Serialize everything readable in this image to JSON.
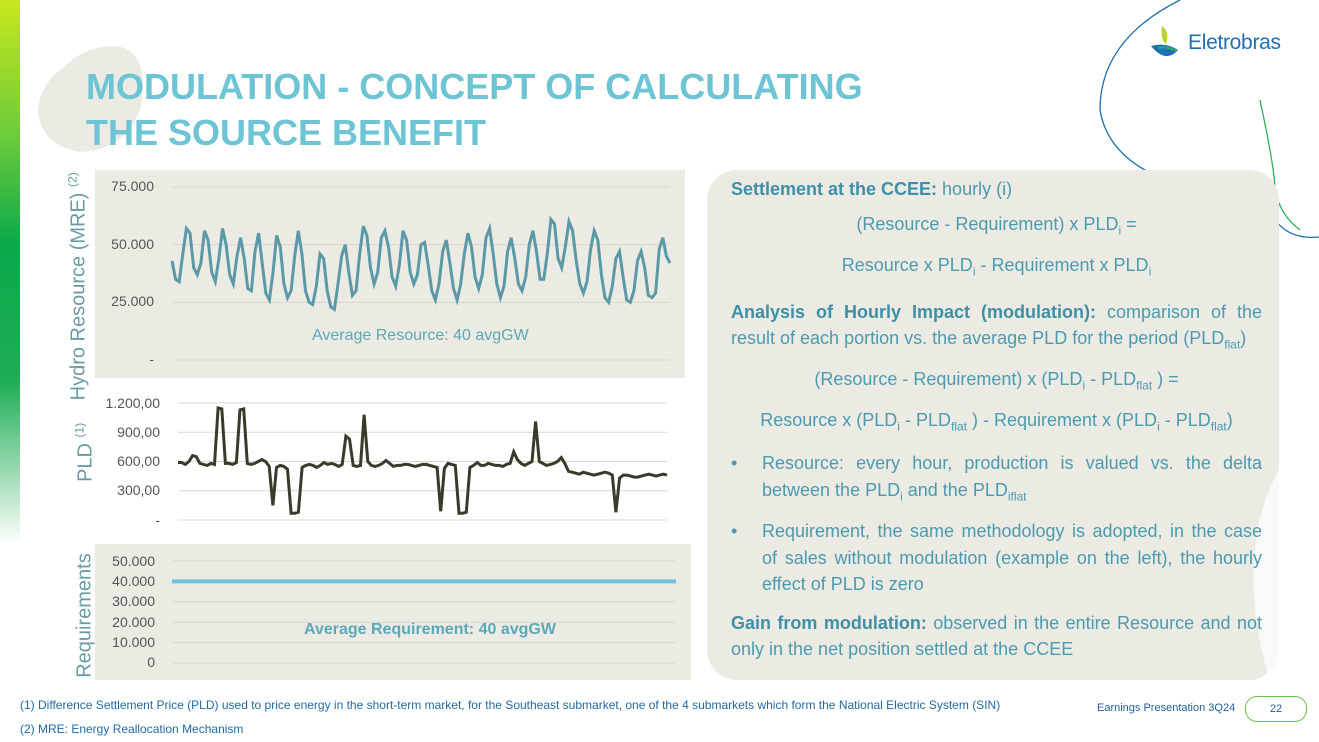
{
  "slide": {
    "title_line1": "MODULATION - CONCEPT OF CALCULATING",
    "title_line2": "THE SOURCE BENEFIT",
    "logo_text": "Eletrobras",
    "footer_label": "Earnings Presentation 3Q24",
    "page_number": "22"
  },
  "axis_labels": {
    "hydro": "Hydro Resource (MRE)",
    "hydro_ref": "(2)",
    "pld": "PLD",
    "pld_ref": "(1)",
    "requirements": "Requirements"
  },
  "chart_data": [
    {
      "type": "line",
      "ylabel": "Hydro Resource (MRE) (2)",
      "y_tick_labels": [
        "75.000",
        "50.000",
        "25.000",
        "-"
      ],
      "y_ticks": [
        75000,
        50000,
        25000,
        0
      ],
      "ylim": [
        0,
        75000
      ],
      "annotation": "Average Resource: 40 avgGW",
      "color": "#5b98a8",
      "values": [
        43000,
        35000,
        34000,
        46000,
        57000,
        55000,
        40000,
        37000,
        42000,
        56000,
        52000,
        38000,
        34000,
        44000,
        57000,
        50000,
        37000,
        33000,
        45000,
        53000,
        44000,
        31000,
        30000,
        47000,
        55000,
        42000,
        29000,
        26000,
        38000,
        54000,
        49000,
        33000,
        27000,
        30000,
        45000,
        56000,
        46000,
        30000,
        25000,
        24000,
        32000,
        46000,
        44000,
        30000,
        23000,
        22000,
        33000,
        45000,
        50000,
        38000,
        28000,
        30000,
        46000,
        58000,
        54000,
        40000,
        33000,
        38000,
        53000,
        56000,
        49000,
        36000,
        32000,
        41000,
        56000,
        52000,
        38000,
        33000,
        37000,
        50000,
        51000,
        41000,
        30000,
        26000,
        33000,
        47000,
        52000,
        42000,
        31000,
        26000,
        33000,
        46000,
        55000,
        49000,
        36000,
        31000,
        37000,
        53000,
        57000,
        46000,
        33000,
        27000,
        32000,
        47000,
        53000,
        44000,
        33000,
        30000,
        36000,
        50000,
        56000,
        47000,
        35000,
        35000,
        46000,
        61000,
        59000,
        44000,
        40000,
        49000,
        60000,
        56000,
        43000,
        33000,
        29000,
        34000,
        48000,
        56000,
        52000,
        37000,
        27000,
        25000,
        32000,
        44000,
        47000,
        36000,
        26000,
        25000,
        30000,
        43000,
        47000,
        40000,
        28000,
        27000,
        29000,
        48000,
        53000,
        45000,
        42000
      ],
      "note": "values are estimated from the image"
    },
    {
      "type": "line",
      "ylabel": "PLD (1)",
      "y_tick_labels": [
        "1.200,00",
        "900,00",
        "600,00",
        "300,00",
        "-"
      ],
      "y_ticks": [
        1200,
        900,
        600,
        300,
        0
      ],
      "ylim": [
        0,
        1200
      ],
      "color": "#3a3a2a",
      "values": [
        590,
        590,
        570,
        600,
        660,
        650,
        580,
        570,
        560,
        580,
        570,
        1150,
        1140,
        580,
        580,
        570,
        590,
        1130,
        1140,
        580,
        570,
        580,
        600,
        620,
        600,
        550,
        150,
        540,
        560,
        550,
        520,
        70,
        70,
        80,
        540,
        560,
        570,
        560,
        540,
        560,
        590,
        570,
        580,
        570,
        550,
        570,
        860,
        830,
        560,
        550,
        560,
        1080,
        600,
        560,
        550,
        560,
        580,
        610,
        580,
        550,
        560,
        560,
        570,
        570,
        560,
        550,
        560,
        570,
        570,
        560,
        550,
        540,
        90,
        530,
        580,
        570,
        560,
        70,
        70,
        80,
        540,
        560,
        590,
        560,
        560,
        580,
        570,
        560,
        560,
        550,
        570,
        580,
        700,
        620,
        580,
        560,
        580,
        600,
        1010,
        600,
        580,
        560,
        570,
        580,
        600,
        640,
        580,
        500,
        490,
        480,
        470,
        490,
        480,
        470,
        460,
        470,
        480,
        490,
        480,
        460,
        80,
        430,
        460,
        460,
        450,
        440,
        440,
        450,
        460,
        470,
        460,
        450,
        460,
        470,
        460
      ],
      "note": "values are estimated from the image"
    },
    {
      "type": "line",
      "ylabel": "Requirements",
      "y_tick_labels": [
        "50.000",
        "40.000",
        "30.000",
        "20.000",
        "10.000",
        "0"
      ],
      "y_ticks": [
        50000,
        40000,
        30000,
        20000,
        10000,
        0
      ],
      "ylim": [
        0,
        50000
      ],
      "annotation": "Average Requirement: 40 avgGW",
      "color": "#6cc4dc",
      "values": [
        40000,
        40000
      ]
    }
  ],
  "right_panel": {
    "settlement_label": "Settlement at the CCEE:",
    "settlement_text": " hourly (i)",
    "eq1": [
      "(Resource - Requirement) x PLD",
      "i",
      " ="
    ],
    "eq2": [
      "Resource x PLD",
      "i",
      " - Requirement x PLD",
      "i"
    ],
    "analysis_label": "Analysis of Hourly Impact (modulation):",
    "analysis_text": " comparison of the result of each portion vs. the average PLD for the period (PLD",
    "analysis_sub": "flat",
    "analysis_end": ")",
    "eq3": [
      "(Resource - Requirement) x (PLD",
      "i",
      " - PLD",
      "flat",
      " ) ="
    ],
    "eq4": [
      "Resource x (PLD",
      "i",
      " - PLD",
      "flat",
      " ) - Requirement x (PLD",
      "i",
      " - PLD",
      "flat",
      ")"
    ],
    "bullet1": [
      "Resource: every hour, production is valued vs. the delta between the PLD",
      "i",
      " and the PLD",
      "iflat"
    ],
    "bullet2": "Requirement, the same methodology is adopted, in the case of sales without modulation (example on the left), the hourly effect of PLD is zero",
    "gain_label": "Gain from modulation:",
    "gain_text": " observed in the entire Resource and not only in the net position settled at the CCEE"
  },
  "footnotes": [
    "(1)   Difference Settlement Price (PLD) used to price energy in the short-term market, for the Southeast submarket, one of the 4 submarkets which form the National Electric System (SIN)",
    "(2)   MRE: Energy Reallocation Mechanism"
  ],
  "colors": {
    "title": "#6cc4d4",
    "body_text": "#4b9bb0",
    "panel_bg": "#ebebe3"
  }
}
